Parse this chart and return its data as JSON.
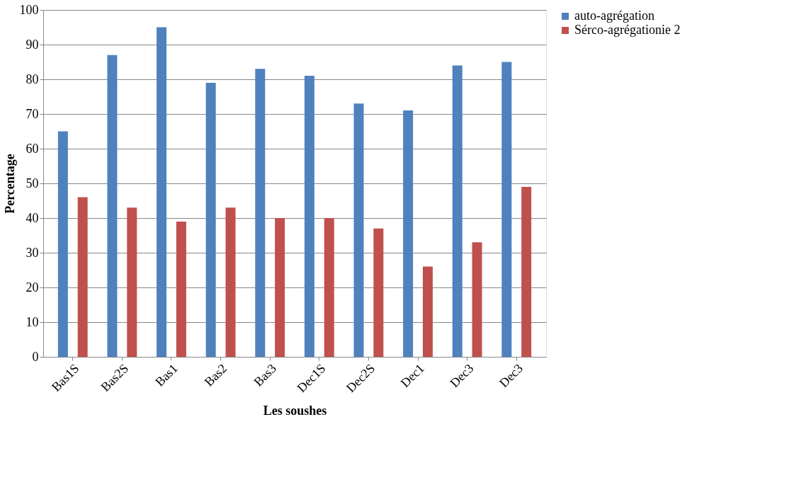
{
  "chart_data": {
    "type": "bar",
    "xlabel": "Les soushes",
    "ylabel": "Percentage",
    "categories": [
      "Bas1S",
      "Bas2S",
      "Bas1",
      "Bas2",
      "Bas3",
      "Dec1S",
      "Dec2S",
      "Dec1",
      "Dec3",
      "Dec3"
    ],
    "series": [
      {
        "name": "auto-agrégation",
        "color": "#4f81bd",
        "values": [
          65,
          87,
          95,
          79,
          83,
          81,
          73,
          71,
          84,
          85
        ]
      },
      {
        "name": "Sérco-agrégationie 2",
        "color": "#c0504d",
        "values": [
          46,
          43,
          39,
          43,
          40,
          40,
          37,
          26,
          33,
          49
        ]
      }
    ],
    "ylim": [
      0,
      100
    ],
    "yticks": [
      0,
      10,
      20,
      30,
      40,
      50,
      60,
      70,
      80,
      90,
      100
    ],
    "grid": "y",
    "legend": "right"
  }
}
